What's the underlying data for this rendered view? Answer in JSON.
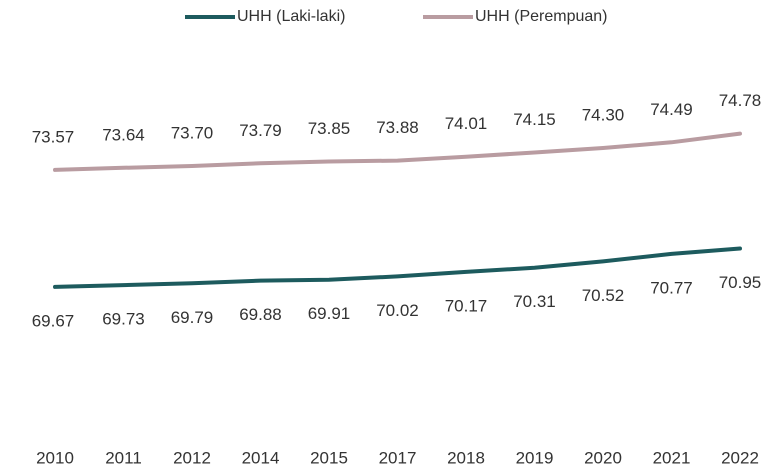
{
  "chart_data": {
    "type": "line",
    "categories": [
      "2010",
      "2011",
      "2012",
      "2014",
      "2015",
      "2017",
      "2018",
      "2019",
      "2020",
      "2021",
      "2022"
    ],
    "series": [
      {
        "name": "UHH (Laki-laki)",
        "color": "#1d5b5e",
        "values": [
          69.67,
          69.73,
          69.79,
          69.88,
          69.91,
          70.02,
          70.17,
          70.31,
          70.52,
          70.77,
          70.95
        ]
      },
      {
        "name": "UHH (Perempuan)",
        "color": "#b99ca1",
        "values": [
          73.57,
          73.64,
          73.7,
          73.79,
          73.85,
          73.88,
          74.01,
          74.15,
          74.3,
          74.49,
          74.78
        ],
        "value_labels": [
          "73.57",
          "73.64",
          "73.70",
          "73.79",
          "73.85",
          "73.88",
          "74.01",
          "74.15",
          "74.30",
          "74.49",
          "74.78"
        ]
      }
    ],
    "ylim": [
      66,
      76
    ],
    "legend": "top"
  }
}
